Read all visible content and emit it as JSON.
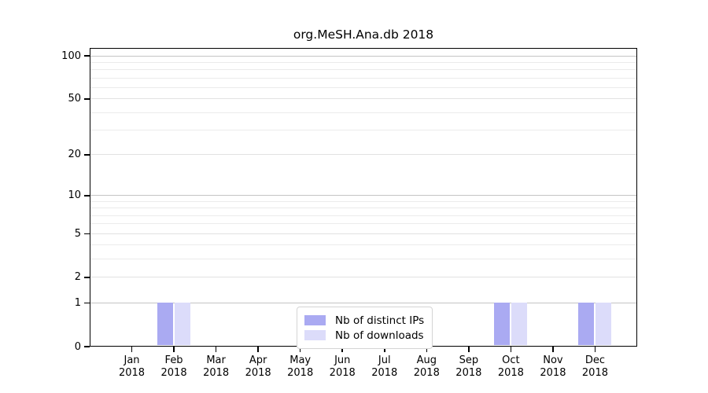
{
  "title": "org.MeSH.Ana.db 2018",
  "chart_data": {
    "type": "bar",
    "title": "org.MeSH.Ana.db 2018",
    "categories": [
      "Jan",
      "Feb",
      "Mar",
      "Apr",
      "May",
      "Jun",
      "Jul",
      "Aug",
      "Sep",
      "Oct",
      "Nov",
      "Dec"
    ],
    "year_label": "2018",
    "series": [
      {
        "name": "Nb of distinct IPs",
        "color": "#aaaaf2",
        "values": [
          0,
          1,
          0,
          0,
          0,
          0,
          0,
          0,
          0,
          1,
          0,
          1
        ]
      },
      {
        "name": "Nb of downloads",
        "color": "#dcdcfa",
        "values": [
          0,
          1,
          0,
          0,
          0,
          0,
          0,
          0,
          0,
          1,
          0,
          1
        ]
      }
    ],
    "yscale": "log1p",
    "ylim": [
      0,
      113.5
    ],
    "yticks": [
      0,
      1,
      2,
      5,
      10,
      20,
      50,
      100
    ],
    "minor_yticks": [
      3,
      4,
      6,
      7,
      8,
      9,
      30,
      40,
      60,
      70,
      80,
      90
    ],
    "xlabel": "",
    "ylabel": "",
    "grid": "horizontal",
    "legend_position": "bottom-center"
  },
  "colors": {
    "major_power_gridline": "#c4c4c4",
    "labeled_gridline": "#e2e2e2",
    "minor_gridline": "#ebebeb",
    "axis": "#000000",
    "background": "#ffffff"
  }
}
